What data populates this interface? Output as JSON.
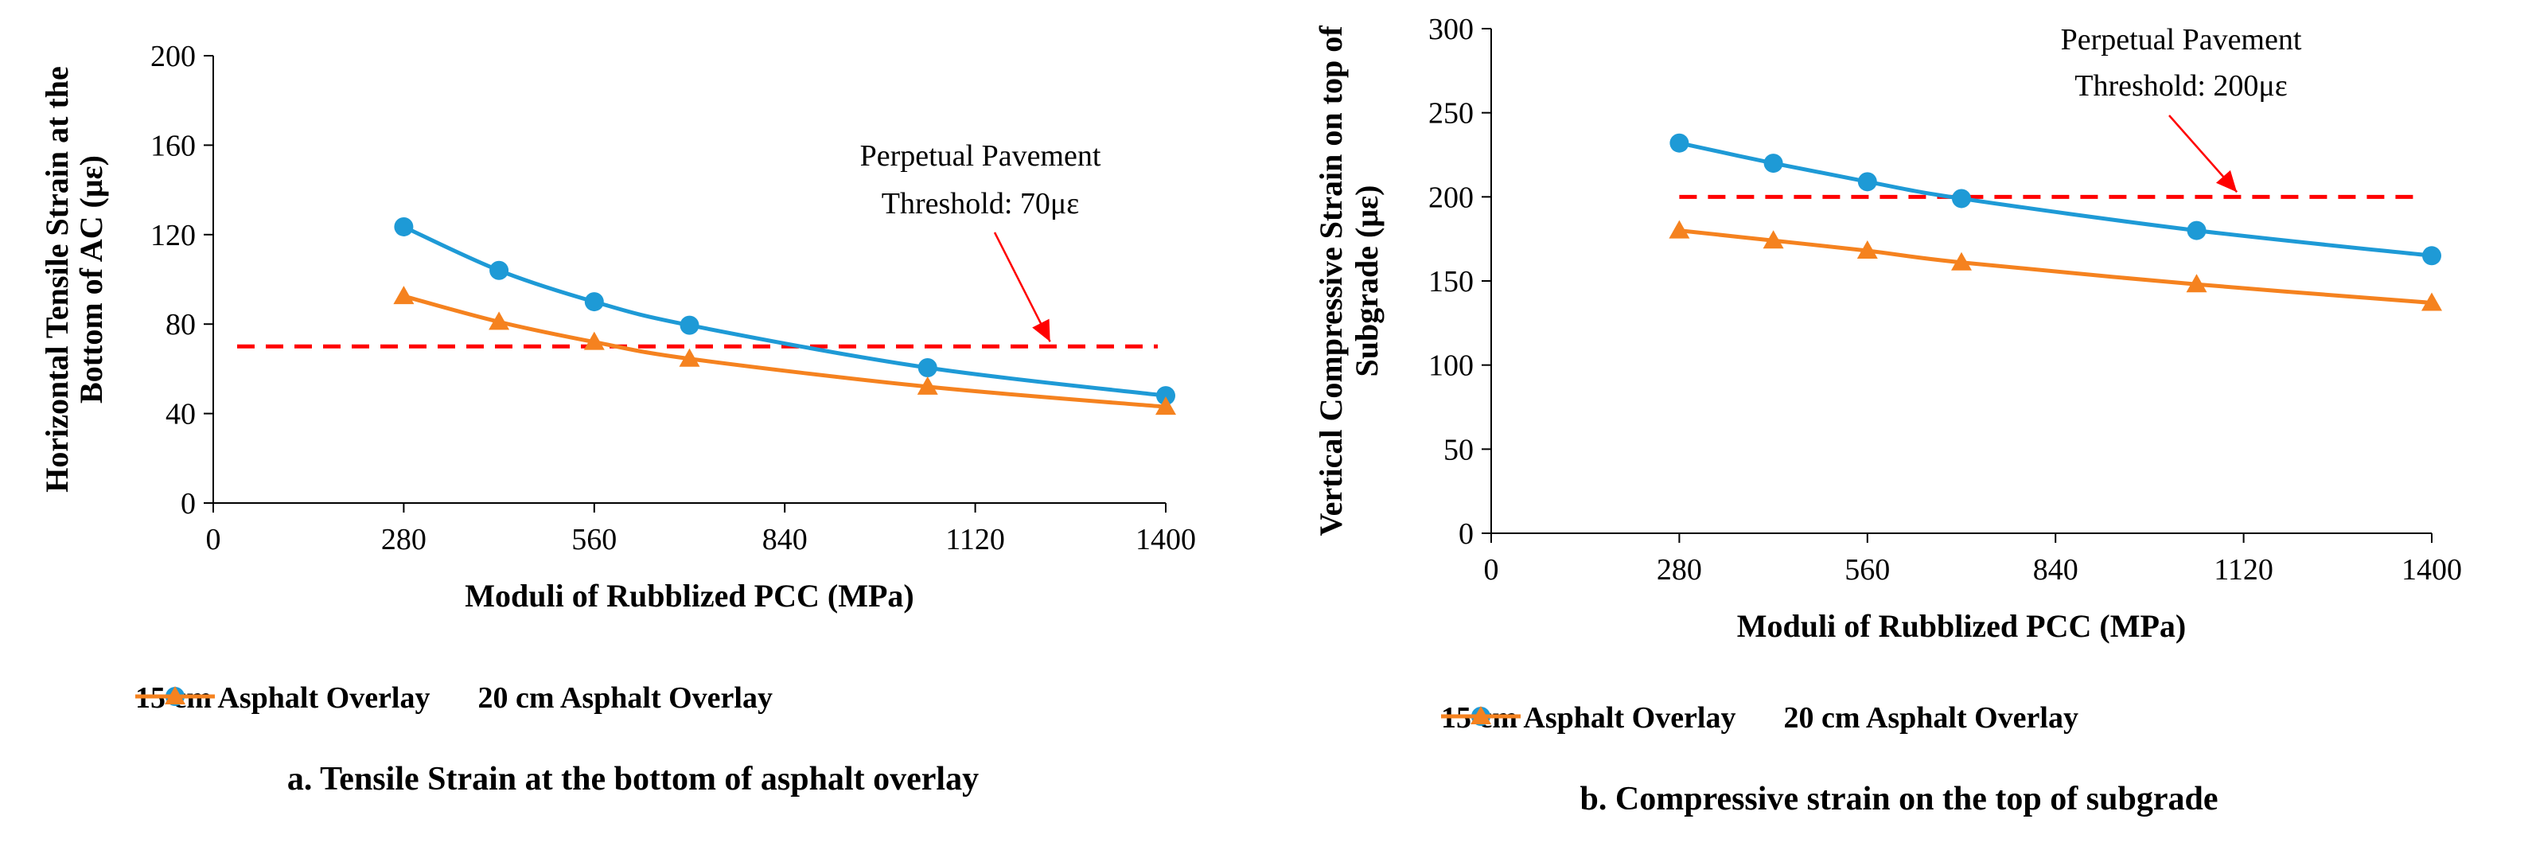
{
  "chart_data": [
    {
      "type": "line",
      "id": "a",
      "title": "",
      "xlabel": "Moduli of Rubblized PCC (MPa)",
      "ylabel_lines": [
        "Horizontal Tensile Strain at the",
        "Bottom of AC (με)"
      ],
      "xlim": [
        0,
        1400
      ],
      "ylim": [
        0,
        200
      ],
      "xticks": [
        0,
        280,
        560,
        840,
        1120,
        1400
      ],
      "yticks": [
        0,
        40,
        80,
        120,
        160,
        200
      ],
      "grid": false,
      "series": [
        {
          "name": "15 cm Asphalt Overlay",
          "color": "#1e9ad6",
          "marker": "circle",
          "x": [
            280,
            420,
            560,
            700,
            1050,
            1400
          ],
          "y": [
            123.5,
            104,
            90,
            79.5,
            60.5,
            48
          ]
        },
        {
          "name": "20 cm Asphalt Overlay",
          "color": "#f5821f",
          "marker": "triangle",
          "x": [
            280,
            420,
            560,
            700,
            1050,
            1400
          ],
          "y": [
            92.5,
            81,
            72,
            64.5,
            52,
            43
          ]
        }
      ],
      "threshold": {
        "value": 70,
        "x_range": [
          0,
          1400
        ],
        "color": "#ff0000",
        "label_lines": [
          "Perpetual Pavement",
          "Threshold: 70με"
        ],
        "arrow_to_x": 1230
      },
      "legend": {
        "placement": "bottom"
      },
      "caption": "a. Tensile Strain at the bottom of asphalt overlay"
    },
    {
      "type": "line",
      "id": "b",
      "title": "",
      "xlabel": "Moduli of Rubblized PCC (MPa)",
      "ylabel_lines": [
        "Vertical Compressive Strain on top of",
        "Subgrade (με)"
      ],
      "xlim": [
        0,
        1400
      ],
      "ylim": [
        0,
        300
      ],
      "xticks": [
        0,
        280,
        560,
        840,
        1120,
        1400
      ],
      "yticks": [
        0,
        50,
        100,
        150,
        200,
        250,
        300
      ],
      "grid": false,
      "series": [
        {
          "name": "15 cm Asphalt Overlay",
          "color": "#1e9ad6",
          "marker": "circle",
          "x": [
            280,
            420,
            560,
            700,
            1050,
            1400
          ],
          "y": [
            232,
            220,
            209,
            199,
            180,
            165
          ]
        },
        {
          "name": "20 cm Asphalt Overlay",
          "color": "#f5821f",
          "marker": "triangle",
          "x": [
            280,
            420,
            560,
            700,
            1050,
            1400
          ],
          "y": [
            180,
            174,
            168,
            161,
            148,
            137
          ]
        }
      ],
      "threshold": {
        "value": 200,
        "x_range": [
          280,
          1400
        ],
        "color": "#ff0000",
        "label_lines": [
          "Perpetual Pavement",
          "Threshold: 200με"
        ],
        "arrow_to_x": 1110
      },
      "legend": {
        "placement": "bottom"
      },
      "caption": "b. Compressive strain on the top of subgrade"
    }
  ]
}
